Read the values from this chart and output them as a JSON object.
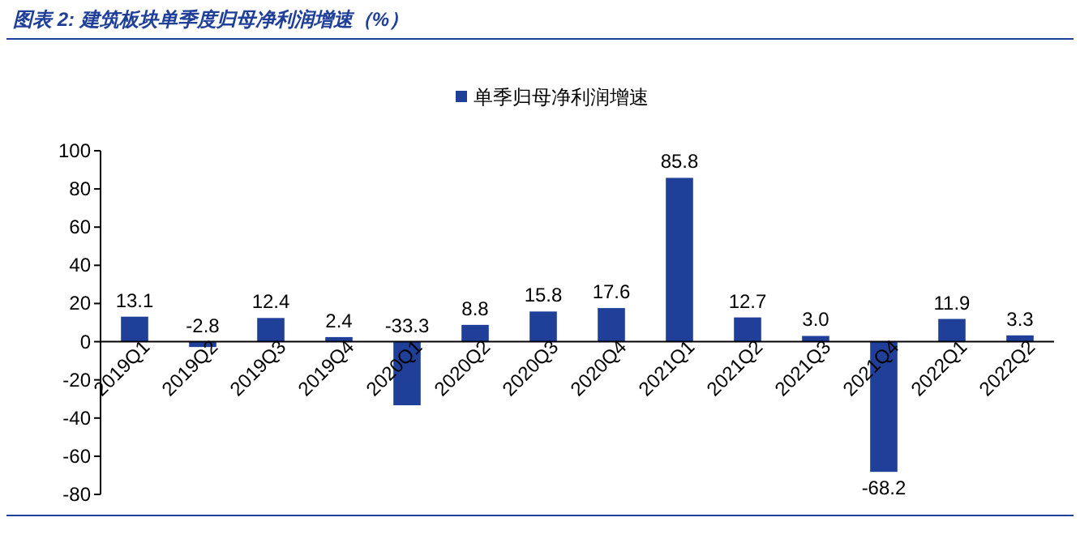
{
  "chart_data": {
    "type": "bar",
    "title": "图表 2: 建筑板块单季度归母净利润增速（%）",
    "categories": [
      "2019Q1",
      "2019Q2",
      "2019Q3",
      "2019Q4",
      "2020Q1",
      "2020Q2",
      "2020Q3",
      "2020Q4",
      "2021Q1",
      "2021Q2",
      "2021Q3",
      "2021Q4",
      "2022Q1",
      "2022Q2"
    ],
    "series": [
      {
        "name": "单季归母净利润增速",
        "color": "#1f3f99",
        "values": [
          13.1,
          -2.8,
          12.4,
          2.4,
          -33.3,
          8.8,
          15.8,
          17.6,
          85.8,
          12.7,
          3.0,
          -68.2,
          11.9,
          3.3
        ],
        "value_labels": [
          "13.1",
          "-2.8",
          "12.4",
          "2.4",
          "-33.3",
          "8.8",
          "15.8",
          "17.6",
          "85.8",
          "12.7",
          "3.0",
          "-68.2",
          "11.9",
          "3.3"
        ]
      }
    ],
    "ylim": [
      -80,
      100
    ],
    "yticks": [
      -80,
      -60,
      -40,
      -20,
      0,
      20,
      40,
      60,
      80,
      100
    ],
    "legend": "top",
    "grid": false
  }
}
